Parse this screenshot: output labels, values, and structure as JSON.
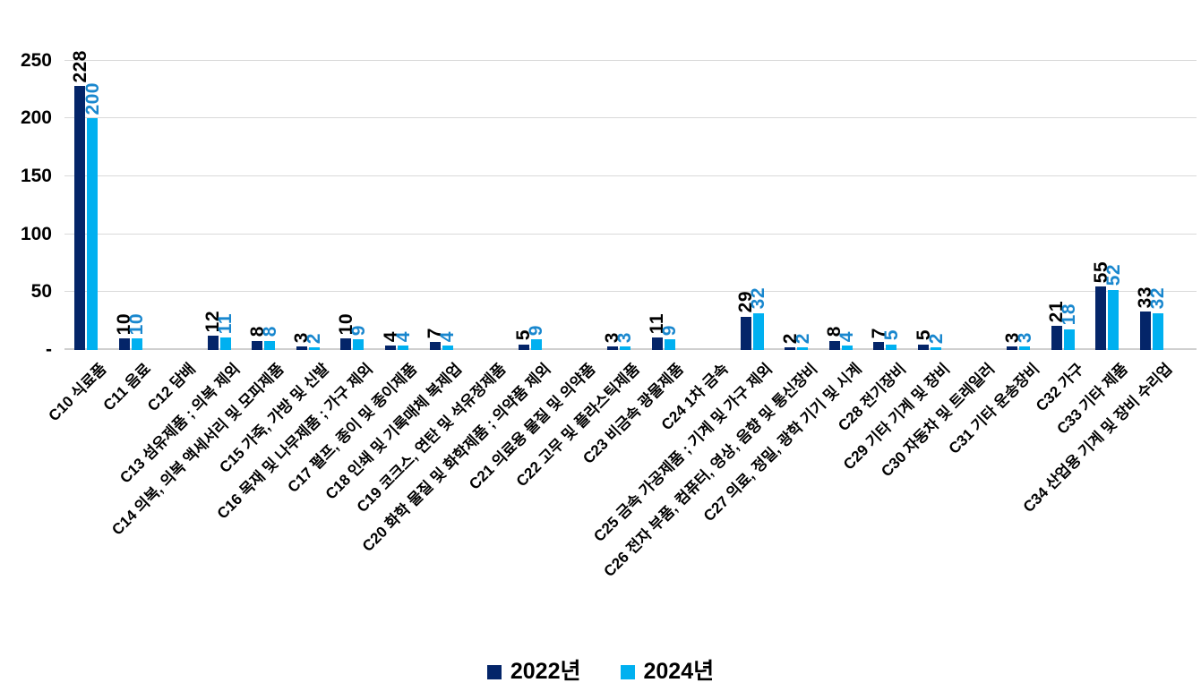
{
  "chart_data": {
    "type": "bar",
    "title": "",
    "xlabel": "",
    "ylabel": "",
    "categories": [
      "C10 식료품",
      "C11 음료",
      "C12 담배",
      "C13 섬유제품 ; 의복 제외",
      "C14 의복, 의복 액세서리 및 모피제품",
      "C15 가죽, 가방 및 신발",
      "C16 목재 및 나무제품 ; 가구 제외",
      "C17 펄프, 종이 및 종이제품",
      "C18 인쇄 및 기록매체 복제업",
      "C19 코크스, 연탄 및 석유정제품",
      "C20 화학 물질 및 화학제품 ; 의약품 제외",
      "C21 의료용 물질 및 의약품",
      "C22 고무 및 플라스틱제품",
      "C23 비금속 광물제품",
      "C24 1차 금속",
      "C25 금속 가공제품 ; 기계 및 가구 제외",
      "C26 전자 부품, 컴퓨터, 영상, 음향 및 통신장비",
      "C27 의료, 정밀, 광학 기기 및 시계",
      "C28 전기장비",
      "C29 기타 기계 및 장비",
      "C30 자동차 및 트레일러",
      "C31 기타 운송장비",
      "C32 가구",
      "C33 기타 제품",
      "C34 산업용 기계 및 장비 수리업"
    ],
    "series": [
      {
        "name": "2022년",
        "color": "#042569",
        "label_color": "#000000",
        "values": [
          228,
          10,
          0,
          12,
          8,
          3,
          10,
          4,
          7,
          0,
          5,
          0,
          3,
          11,
          0,
          29,
          2,
          8,
          7,
          5,
          0,
          3,
          21,
          55,
          33
        ]
      },
      {
        "name": "2024년",
        "color": "#00b0f0",
        "label_color": "#1987ce",
        "values": [
          200,
          10,
          0,
          11,
          8,
          2,
          9,
          4,
          4,
          0,
          9,
          0,
          3,
          9,
          0,
          32,
          2,
          4,
          5,
          2,
          0,
          3,
          18,
          52,
          32
        ]
      }
    ],
    "y_axis": {
      "range": [
        0,
        250
      ],
      "ticks": [
        {
          "value": 0,
          "label": "-"
        },
        {
          "value": 50,
          "label": "50"
        },
        {
          "value": 100,
          "label": "100"
        },
        {
          "value": 150,
          "label": "150"
        },
        {
          "value": 200,
          "label": "200"
        },
        {
          "value": 250,
          "label": "250"
        }
      ]
    },
    "grid": "horizontal",
    "legend_position": "bottom",
    "value_labels": "vertical, hidden when value is 0"
  }
}
